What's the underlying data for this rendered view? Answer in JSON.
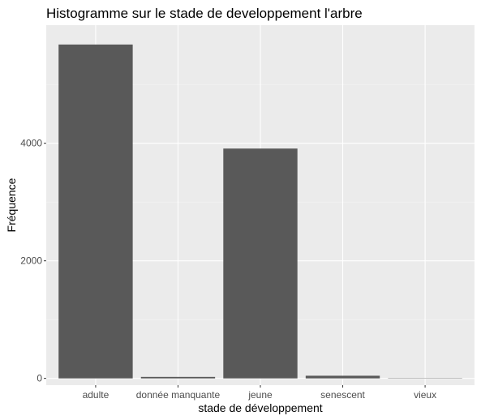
{
  "chart_data": {
    "type": "bar",
    "title": "Histogramme sur le stade de developpement l'arbre",
    "xlabel": "stade de développement",
    "ylabel": "Fréquence",
    "categories": [
      "adulte",
      "donnée manquante",
      "jeune",
      "senescent",
      "vieux"
    ],
    "values": [
      5680,
      25,
      3910,
      45,
      5
    ],
    "ylim": [
      -115,
      6010
    ],
    "yticks": [
      0,
      2000,
      4000
    ],
    "ytick_labels": [
      "0",
      "2000",
      "4000"
    ],
    "grid": true,
    "legend": "none",
    "colors": {
      "panel_background": "#ebebeb",
      "grid_major": "#ffffff",
      "grid_minor": "#f5f5f5",
      "bar_fill": "#595959",
      "tick_text": "#4d4d4d",
      "text": "#000000"
    }
  }
}
